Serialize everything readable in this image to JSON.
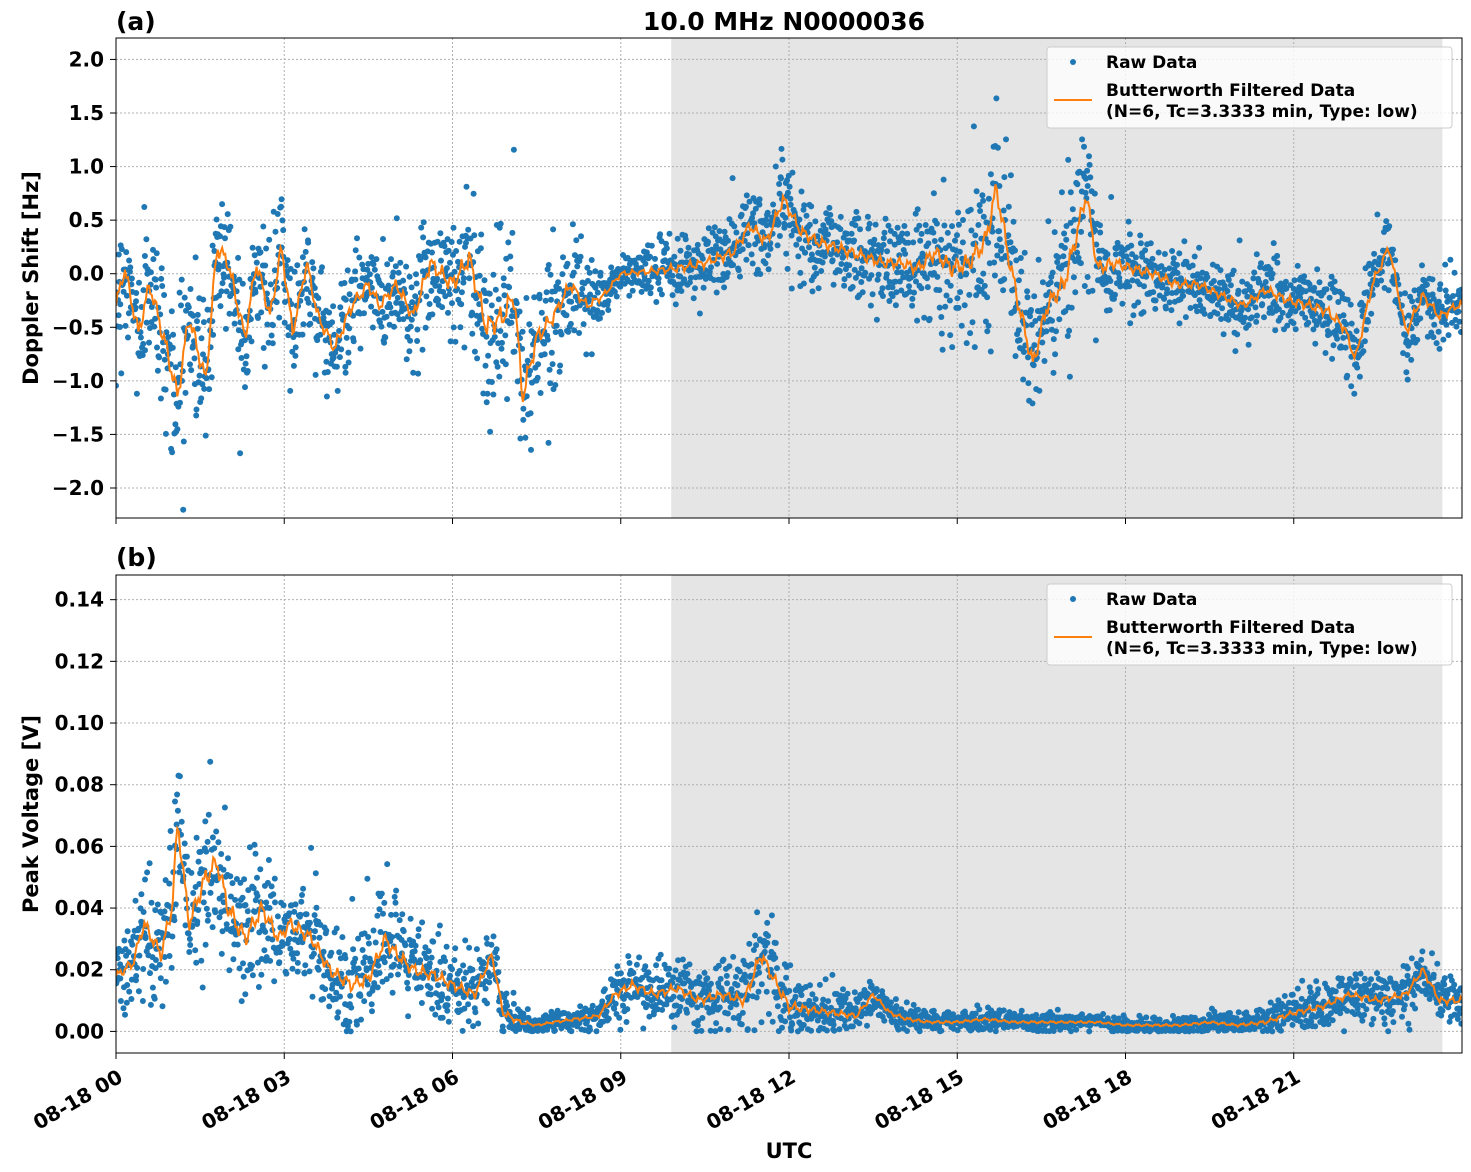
{
  "title": "10.0 MHz N0000036",
  "colors": {
    "raw": "#1f77b4",
    "filtered": "#ff7f0e",
    "shade": "#e5e5e5",
    "grid": "#b0b0b0"
  },
  "legend": {
    "raw_label": "Raw Data",
    "filtered_label_line1": "Butterworth Filtered Data",
    "filtered_label_line2": "(N=6, Tc=3.3333 min, Type: low)"
  },
  "xaxis": {
    "label": "UTC",
    "range_hours": [
      0,
      24
    ],
    "ticks": [
      {
        "h": 0,
        "label": "08-18 00"
      },
      {
        "h": 3,
        "label": "08-18 03"
      },
      {
        "h": 6,
        "label": "08-18 06"
      },
      {
        "h": 9,
        "label": "08-18 09"
      },
      {
        "h": 12,
        "label": "08-18 12"
      },
      {
        "h": 15,
        "label": "08-18 15"
      },
      {
        "h": 18,
        "label": "08-18 18"
      },
      {
        "h": 21,
        "label": "08-18 21"
      }
    ]
  },
  "chart_data": [
    {
      "type": "scatter",
      "panel": "(a)",
      "ylabel": "Doppler Shift [Hz]",
      "ylim": [
        -2.28,
        2.2
      ],
      "yticks": [
        2.0,
        1.5,
        1.0,
        0.5,
        0.0,
        -0.5,
        -1.0,
        -1.5,
        -2.0
      ],
      "ytick_labels": [
        "2.0",
        "1.5",
        "1.0",
        "0.5",
        "0.0",
        "−0.5",
        "−1.0",
        "−1.5",
        "−2.0"
      ],
      "shaded_hours": [
        9.9,
        23.65
      ],
      "grid": true,
      "legend_position": "top-right",
      "series": [
        {
          "name": "Raw Data",
          "style": "points",
          "spread": [
            [
              0,
              0.6
            ],
            [
              1,
              0.8
            ],
            [
              3,
              0.6
            ],
            [
              5,
              0.5
            ],
            [
              7,
              1.0
            ],
            [
              8,
              0.5
            ],
            [
              9,
              0.2
            ],
            [
              10,
              0.35
            ],
            [
              11.5,
              0.5
            ],
            [
              14,
              0.45
            ],
            [
              15.5,
              0.9
            ],
            [
              16.5,
              0.7
            ],
            [
              17,
              0.9
            ],
            [
              18,
              0.4
            ],
            [
              20,
              0.35
            ],
            [
              22,
              0.45
            ],
            [
              24,
              0.35
            ]
          ]
        },
        {
          "name": "Butterworth Filtered Data (N=6, Tc=3.3333 min, Type: low)",
          "style": "line",
          "x": [
            0,
            0.15,
            0.4,
            0.6,
            0.9,
            1.1,
            1.3,
            1.6,
            1.8,
            2.0,
            2.3,
            2.5,
            2.75,
            2.95,
            3.15,
            3.4,
            3.6,
            3.9,
            4.2,
            4.5,
            4.7,
            5.0,
            5.3,
            5.6,
            6.0,
            6.3,
            6.6,
            6.9,
            7.1,
            7.25,
            7.5,
            7.8,
            8.1,
            8.4,
            8.7,
            9.0,
            9.5,
            10.0,
            10.5,
            11.0,
            11.3,
            11.6,
            11.9,
            12.2,
            12.5,
            12.8,
            13.1,
            13.4,
            13.7,
            14.0,
            14.3,
            14.6,
            14.9,
            15.2,
            15.5,
            15.7,
            15.9,
            16.1,
            16.35,
            16.6,
            16.9,
            17.1,
            17.3,
            17.5,
            17.8,
            18.1,
            18.5,
            18.9,
            19.3,
            19.7,
            20.1,
            20.5,
            20.9,
            21.3,
            21.6,
            21.9,
            22.1,
            22.4,
            22.7,
            23.0,
            23.3,
            23.6,
            23.9,
            24.0
          ],
          "y": [
            -0.3,
            0.05,
            -0.55,
            -0.1,
            -0.7,
            -1.15,
            -0.4,
            -1.0,
            0.25,
            0.1,
            -0.6,
            0.1,
            -0.4,
            0.25,
            -0.55,
            0.1,
            -0.4,
            -0.7,
            -0.3,
            -0.1,
            -0.3,
            -0.1,
            -0.4,
            0.1,
            -0.1,
            0.15,
            -0.5,
            -0.4,
            -0.2,
            -1.15,
            -0.6,
            -0.4,
            -0.1,
            -0.3,
            -0.2,
            0.0,
            0.02,
            0.05,
            0.1,
            0.2,
            0.45,
            0.3,
            0.7,
            0.4,
            0.3,
            0.25,
            0.2,
            0.15,
            0.1,
            0.1,
            0.05,
            0.2,
            0.05,
            0.1,
            0.3,
            0.8,
            0.2,
            -0.3,
            -0.85,
            -0.3,
            -0.1,
            0.3,
            0.75,
            0.05,
            0.1,
            0.05,
            0.0,
            -0.1,
            -0.1,
            -0.2,
            -0.3,
            -0.15,
            -0.25,
            -0.3,
            -0.35,
            -0.5,
            -0.8,
            -0.1,
            0.25,
            -0.55,
            -0.2,
            -0.4,
            -0.3,
            -0.3
          ]
        }
      ]
    },
    {
      "type": "scatter",
      "panel": "(b)",
      "ylabel": "Peak Voltage [V]",
      "ylim": [
        -0.007,
        0.148
      ],
      "yticks": [
        0.14,
        0.12,
        0.1,
        0.08,
        0.06,
        0.04,
        0.02,
        0.0
      ],
      "ytick_labels": [
        "0.14",
        "0.12",
        "0.10",
        "0.08",
        "0.06",
        "0.04",
        "0.02",
        "0.00"
      ],
      "shaded_hours": [
        9.9,
        23.65
      ],
      "grid": true,
      "legend_position": "top-right",
      "series": [
        {
          "name": "Raw Data",
          "style": "points",
          "spread": [
            [
              0,
              0.012
            ],
            [
              1,
              0.025
            ],
            [
              2,
              0.03
            ],
            [
              3,
              0.02
            ],
            [
              5,
              0.02
            ],
            [
              7,
              0.01
            ],
            [
              7.5,
              0.003
            ],
            [
              8.5,
              0.005
            ],
            [
              9,
              0.012
            ],
            [
              11,
              0.012
            ],
            [
              11.5,
              0.02
            ],
            [
              12.5,
              0.01
            ],
            [
              14.5,
              0.004
            ],
            [
              18,
              0.003
            ],
            [
              20,
              0.004
            ],
            [
              21,
              0.008
            ],
            [
              24,
              0.01
            ]
          ]
        },
        {
          "name": "Butterworth Filtered Data (N=6, Tc=3.3333 min, Type: low)",
          "style": "line",
          "x": [
            0,
            0.3,
            0.5,
            0.8,
            1.0,
            1.1,
            1.3,
            1.6,
            1.8,
            2.0,
            2.3,
            2.6,
            2.9,
            3.1,
            3.5,
            3.8,
            4.2,
            4.5,
            4.8,
            5.0,
            5.3,
            5.7,
            6.0,
            6.4,
            6.7,
            6.9,
            7.2,
            7.5,
            7.8,
            8.2,
            8.6,
            8.9,
            9.2,
            9.6,
            10.0,
            10.4,
            10.8,
            11.2,
            11.5,
            11.7,
            12.0,
            12.4,
            12.8,
            13.2,
            13.5,
            13.8,
            14.1,
            14.5,
            15.0,
            15.5,
            16.0,
            16.5,
            17.0,
            17.5,
            18.0,
            18.5,
            19.0,
            19.5,
            20.0,
            20.5,
            21.0,
            21.5,
            22.0,
            22.5,
            23.0,
            23.3,
            23.6,
            24.0
          ],
          "y": [
            0.018,
            0.022,
            0.035,
            0.025,
            0.04,
            0.068,
            0.035,
            0.05,
            0.055,
            0.04,
            0.03,
            0.04,
            0.03,
            0.035,
            0.03,
            0.02,
            0.015,
            0.017,
            0.03,
            0.025,
            0.02,
            0.018,
            0.015,
            0.012,
            0.025,
            0.006,
            0.003,
            0.002,
            0.003,
            0.004,
            0.005,
            0.012,
            0.015,
            0.012,
            0.014,
            0.01,
            0.012,
            0.01,
            0.025,
            0.018,
            0.008,
            0.007,
            0.006,
            0.005,
            0.012,
            0.006,
            0.004,
            0.003,
            0.003,
            0.004,
            0.003,
            0.003,
            0.003,
            0.003,
            0.002,
            0.002,
            0.002,
            0.003,
            0.002,
            0.003,
            0.006,
            0.008,
            0.012,
            0.01,
            0.012,
            0.02,
            0.01,
            0.01
          ]
        }
      ]
    }
  ]
}
